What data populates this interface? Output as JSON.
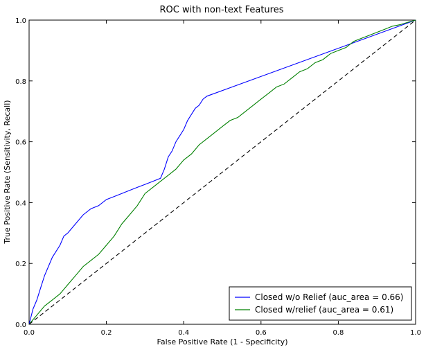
{
  "chart_data": {
    "type": "line",
    "title": "ROC with non-text Features",
    "xlabel": "False Positive Rate (1 - Specificity)",
    "ylabel": "True Positive Rate (Sensitivity, Recall)",
    "xlim": [
      0.0,
      1.0
    ],
    "ylim": [
      0.0,
      1.0
    ],
    "xticks": [
      0.0,
      0.2,
      0.4,
      0.6,
      0.8,
      1.0
    ],
    "yticks": [
      0.0,
      0.2,
      0.4,
      0.6,
      0.8,
      1.0
    ],
    "xtick_labels": [
      "0.0",
      "0.2",
      "0.4",
      "0.6",
      "0.8",
      "1.0"
    ],
    "ytick_labels": [
      "0.0",
      "0.2",
      "0.4",
      "0.6",
      "0.8",
      "1.0"
    ],
    "grid": false,
    "legend_position": "lower-right",
    "series": [
      {
        "name": "Closed w/o Relief (auc_area = 0.66)",
        "color": "#0000ff",
        "linestyle": "solid",
        "x": [
          0.0,
          0.01,
          0.02,
          0.03,
          0.04,
          0.05,
          0.06,
          0.07,
          0.08,
          0.09,
          0.1,
          0.12,
          0.14,
          0.16,
          0.18,
          0.2,
          0.22,
          0.24,
          0.26,
          0.28,
          0.3,
          0.32,
          0.34,
          0.35,
          0.36,
          0.37,
          0.38,
          0.39,
          0.4,
          0.41,
          0.42,
          0.43,
          0.44,
          0.45,
          0.46,
          1.0
        ],
        "y": [
          0.0,
          0.05,
          0.08,
          0.12,
          0.16,
          0.19,
          0.22,
          0.24,
          0.26,
          0.29,
          0.3,
          0.33,
          0.36,
          0.38,
          0.39,
          0.41,
          0.42,
          0.43,
          0.44,
          0.45,
          0.46,
          0.47,
          0.48,
          0.51,
          0.55,
          0.57,
          0.6,
          0.62,
          0.64,
          0.67,
          0.69,
          0.71,
          0.72,
          0.74,
          0.75,
          1.0
        ]
      },
      {
        "name": "Closed w/relief (auc_area = 0.61)",
        "color": "#008000",
        "linestyle": "solid",
        "x": [
          0.0,
          0.02,
          0.04,
          0.06,
          0.08,
          0.1,
          0.12,
          0.14,
          0.16,
          0.18,
          0.2,
          0.22,
          0.24,
          0.26,
          0.28,
          0.3,
          0.32,
          0.34,
          0.36,
          0.38,
          0.4,
          0.42,
          0.44,
          0.46,
          0.48,
          0.5,
          0.52,
          0.54,
          0.56,
          0.58,
          0.6,
          0.62,
          0.64,
          0.66,
          0.68,
          0.7,
          0.72,
          0.74,
          0.76,
          0.78,
          0.8,
          0.82,
          0.84,
          0.86,
          0.88,
          0.9,
          0.92,
          0.94,
          0.96,
          0.98,
          1.0
        ],
        "y": [
          0.0,
          0.03,
          0.06,
          0.08,
          0.1,
          0.13,
          0.16,
          0.19,
          0.21,
          0.23,
          0.26,
          0.29,
          0.33,
          0.36,
          0.39,
          0.43,
          0.45,
          0.47,
          0.49,
          0.51,
          0.54,
          0.56,
          0.59,
          0.61,
          0.63,
          0.65,
          0.67,
          0.68,
          0.7,
          0.72,
          0.74,
          0.76,
          0.78,
          0.79,
          0.81,
          0.83,
          0.84,
          0.86,
          0.87,
          0.89,
          0.9,
          0.91,
          0.93,
          0.94,
          0.95,
          0.96,
          0.97,
          0.98,
          0.985,
          0.993,
          1.0
        ]
      },
      {
        "name": "",
        "color": "#000000",
        "linestyle": "dashed",
        "x": [
          0.0,
          1.0
        ],
        "y": [
          0.0,
          1.0
        ]
      }
    ]
  }
}
